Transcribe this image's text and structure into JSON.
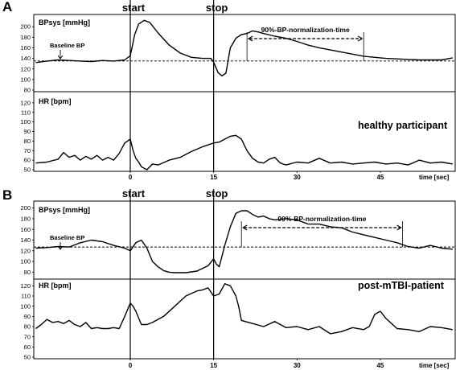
{
  "chart_data": [
    {
      "type": "line",
      "panel_label": "A",
      "condition_label": "healthy participant",
      "markers": [
        {
          "label": "start",
          "x": 0
        },
        {
          "label": "stop",
          "x": 15
        }
      ],
      "x_axis": {
        "ticks": [
          0,
          15,
          30,
          45
        ],
        "unit_label": "time [sec]",
        "range": [
          -17,
          58
        ]
      },
      "bp": {
        "ylabel": "BPsys [mmHg]",
        "ylim": [
          80,
          220
        ],
        "yticks": [
          80,
          100,
          120,
          140,
          160,
          180,
          200
        ],
        "baseline_label": "Baseline BP",
        "baseline_value": 135,
        "normalization_label": "90%-BP-normalization-time",
        "normalization_range": [
          21,
          42
        ],
        "series": {
          "name": "BPsys",
          "x": [
            -17,
            -15,
            -13,
            -11,
            -9,
            -7,
            -5,
            -3,
            -1,
            0,
            0.8,
            1.5,
            2.5,
            3.5,
            5,
            7,
            9,
            11,
            13,
            14.5,
            15,
            15.8,
            16.5,
            17.2,
            18,
            19,
            20,
            21,
            22,
            23,
            24,
            26,
            28,
            30,
            32,
            34,
            36,
            38,
            40,
            42,
            44,
            46,
            48,
            50,
            52,
            54,
            56,
            58
          ],
          "y": [
            132,
            135,
            137,
            136,
            135,
            134,
            136,
            135,
            137,
            145,
            185,
            205,
            212,
            208,
            188,
            165,
            150,
            142,
            140,
            140,
            133,
            113,
            107,
            112,
            160,
            178,
            185,
            187,
            192,
            190,
            187,
            182,
            178,
            172,
            165,
            160,
            156,
            152,
            148,
            144,
            142,
            140,
            139,
            138,
            137,
            137,
            137,
            141
          ]
        }
      },
      "hr": {
        "ylabel": "HR [bpm]",
        "ylim": [
          50,
          130
        ],
        "yticks": [
          50,
          60,
          70,
          80,
          90,
          100,
          110,
          120
        ],
        "series": {
          "name": "HR",
          "x": [
            -17,
            -15,
            -13,
            -12,
            -11,
            -10,
            -9,
            -8,
            -7,
            -6,
            -5,
            -4,
            -3,
            -2,
            -1,
            0,
            0.5,
            1,
            1.5,
            2,
            3,
            4,
            5,
            7,
            9,
            11,
            13,
            15,
            16,
            17,
            18,
            19,
            20,
            21,
            22,
            23,
            24,
            25,
            26,
            27,
            28,
            30,
            32,
            34,
            36,
            38,
            40,
            42,
            44,
            46,
            48,
            50,
            52,
            54,
            56,
            58
          ],
          "y": [
            57,
            58,
            61,
            68,
            63,
            65,
            60,
            64,
            61,
            65,
            60,
            63,
            60,
            67,
            78,
            82,
            70,
            62,
            58,
            53,
            50,
            56,
            55,
            60,
            63,
            69,
            74,
            78,
            79,
            82,
            85,
            86,
            82,
            70,
            62,
            58,
            57,
            61,
            63,
            57,
            55,
            58,
            57,
            62,
            57,
            58,
            56,
            57,
            58,
            56,
            57,
            55,
            60,
            57,
            58,
            56
          ]
        }
      }
    },
    {
      "type": "line",
      "panel_label": "B",
      "condition_label": "post-mTBI-patient",
      "markers": [
        {
          "label": "start",
          "x": 0
        },
        {
          "label": "stop",
          "x": 15
        }
      ],
      "x_axis": {
        "ticks": [
          0,
          15,
          30,
          45
        ],
        "unit_label": "time [sec]",
        "range": [
          -17,
          58
        ]
      },
      "bp": {
        "ylabel": "BPsys [mmHg]",
        "ylim": [
          70,
          210
        ],
        "yticks": [
          80,
          100,
          120,
          140,
          160,
          180,
          200
        ],
        "baseline_label": "Baseline BP",
        "baseline_value": 127,
        "normalization_label": "90%-BP-normalization-time",
        "normalization_range": [
          20,
          49
        ],
        "series": {
          "name": "BPsys",
          "x": [
            -17,
            -15,
            -13,
            -11,
            -9,
            -7,
            -5,
            -3,
            -1,
            0,
            1,
            2,
            3,
            4,
            5,
            6,
            7,
            8,
            10,
            12,
            14,
            15,
            15.5,
            16,
            16.5,
            17,
            18,
            19,
            20,
            21,
            22,
            23,
            24,
            25,
            26,
            28,
            30,
            32,
            34,
            36,
            38,
            40,
            42,
            44,
            46,
            48,
            50,
            52,
            54,
            56,
            58
          ],
          "y": [
            125,
            126,
            128,
            127,
            135,
            140,
            137,
            130,
            125,
            120,
            135,
            140,
            125,
            100,
            90,
            83,
            80,
            79,
            79,
            82,
            92,
            105,
            95,
            90,
            110,
            130,
            165,
            190,
            195,
            195,
            188,
            183,
            185,
            180,
            178,
            180,
            178,
            170,
            170,
            165,
            163,
            155,
            150,
            145,
            140,
            135,
            128,
            125,
            130,
            125,
            123
          ]
        }
      },
      "hr": {
        "ylabel": "HR [bpm]",
        "ylim": [
          50,
          125
        ],
        "yticks": [
          50,
          60,
          70,
          80,
          90,
          100,
          110,
          120
        ],
        "series": {
          "name": "HR",
          "x": [
            -17,
            -16,
            -15,
            -14,
            -13,
            -12,
            -11,
            -10,
            -9,
            -8,
            -7,
            -6,
            -5,
            -4,
            -3,
            -2,
            -1,
            0,
            0.5,
            1,
            2,
            3,
            4,
            6,
            8,
            10,
            12,
            13,
            14,
            15,
            16,
            17,
            18,
            19,
            19.5,
            20,
            22,
            24,
            26,
            28,
            30,
            32,
            34,
            36,
            38,
            40,
            42,
            43,
            44,
            45,
            46,
            48,
            50,
            52,
            54,
            56,
            58
          ],
          "y": [
            78,
            82,
            87,
            84,
            85,
            83,
            86,
            82,
            80,
            84,
            78,
            79,
            78,
            78,
            79,
            78,
            90,
            103,
            100,
            95,
            82,
            82,
            84,
            90,
            100,
            110,
            115,
            116,
            118,
            110,
            112,
            122,
            120,
            110,
            100,
            86,
            83,
            80,
            85,
            79,
            80,
            77,
            80,
            73,
            75,
            79,
            77,
            80,
            92,
            95,
            88,
            78,
            77,
            75,
            80,
            79,
            77
          ]
        }
      }
    }
  ]
}
